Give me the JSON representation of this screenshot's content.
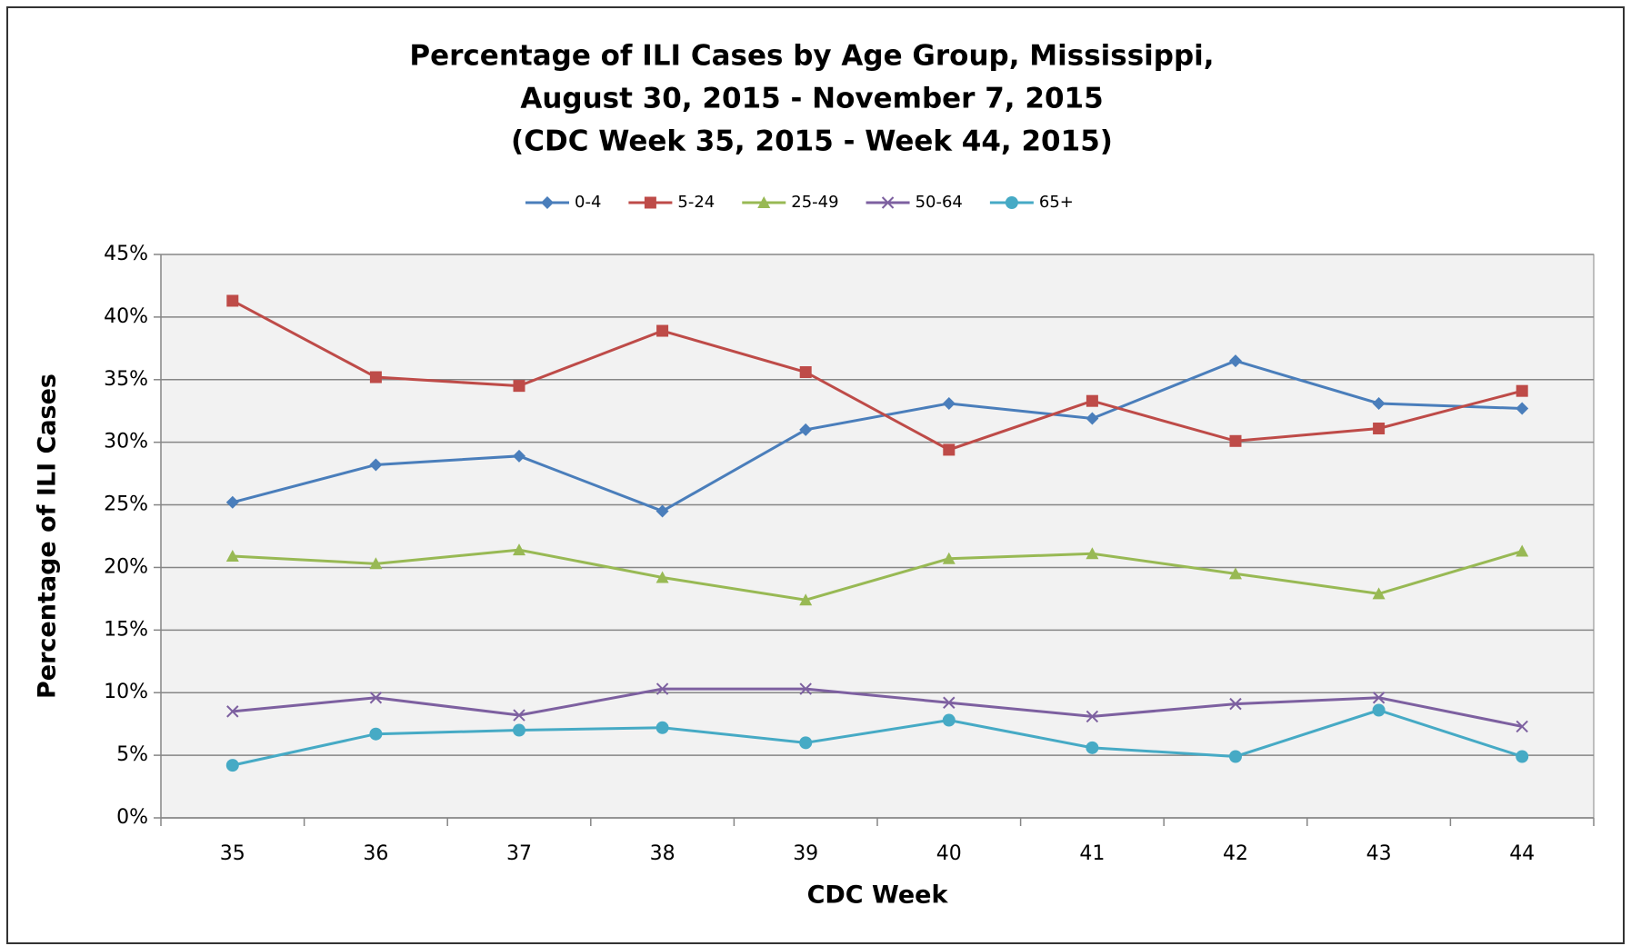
{
  "chart_data": {
    "type": "line",
    "title": [
      "Percentage of ILI Cases by Age Group, Mississippi,",
      "August 30, 2015 - November 7, 2015",
      "(CDC Week 35, 2015 - Week 44, 2015)"
    ],
    "x_label": "CDC Week",
    "y_label": "Percentage of ILI Cases",
    "categories": [
      "35",
      "36",
      "37",
      "38",
      "39",
      "40",
      "41",
      "42",
      "43",
      "44"
    ],
    "series": [
      {
        "name": "0-4",
        "color": "#4a7ebb",
        "marker": "diamond",
        "values": [
          25.2,
          28.2,
          28.9,
          24.5,
          31.0,
          33.1,
          31.9,
          36.5,
          33.1,
          32.7
        ]
      },
      {
        "name": "5-24",
        "color": "#be4b48",
        "marker": "square",
        "values": [
          41.3,
          35.2,
          34.5,
          38.9,
          35.6,
          29.4,
          33.3,
          30.1,
          31.1,
          34.1
        ]
      },
      {
        "name": "25-49",
        "color": "#98b954",
        "marker": "triangle",
        "values": [
          20.9,
          20.3,
          21.4,
          19.2,
          17.4,
          20.7,
          21.1,
          19.5,
          17.9,
          21.3
        ]
      },
      {
        "name": "50-64",
        "color": "#7d60a0",
        "marker": "x",
        "values": [
          8.5,
          9.6,
          8.2,
          10.3,
          10.3,
          9.2,
          8.1,
          9.1,
          9.6,
          7.3
        ]
      },
      {
        "name": "65+",
        "color": "#46aac5",
        "marker": "circle",
        "values": [
          4.2,
          6.7,
          7.0,
          7.2,
          6.0,
          7.8,
          5.6,
          4.9,
          8.6,
          4.9
        ]
      }
    ],
    "ylim": [
      0,
      45
    ],
    "yticks": [
      {
        "value": 0,
        "label": "0%"
      },
      {
        "value": 5,
        "label": "5%"
      },
      {
        "value": 10,
        "label": "10%"
      },
      {
        "value": 15,
        "label": "15%"
      },
      {
        "value": 20,
        "label": "20%"
      },
      {
        "value": 25,
        "label": "25%"
      },
      {
        "value": 30,
        "label": "30%"
      },
      {
        "value": 35,
        "label": "35%"
      },
      {
        "value": 40,
        "label": "40%"
      },
      {
        "value": 45,
        "label": "45%"
      }
    ],
    "grid": true,
    "legend": "top"
  }
}
